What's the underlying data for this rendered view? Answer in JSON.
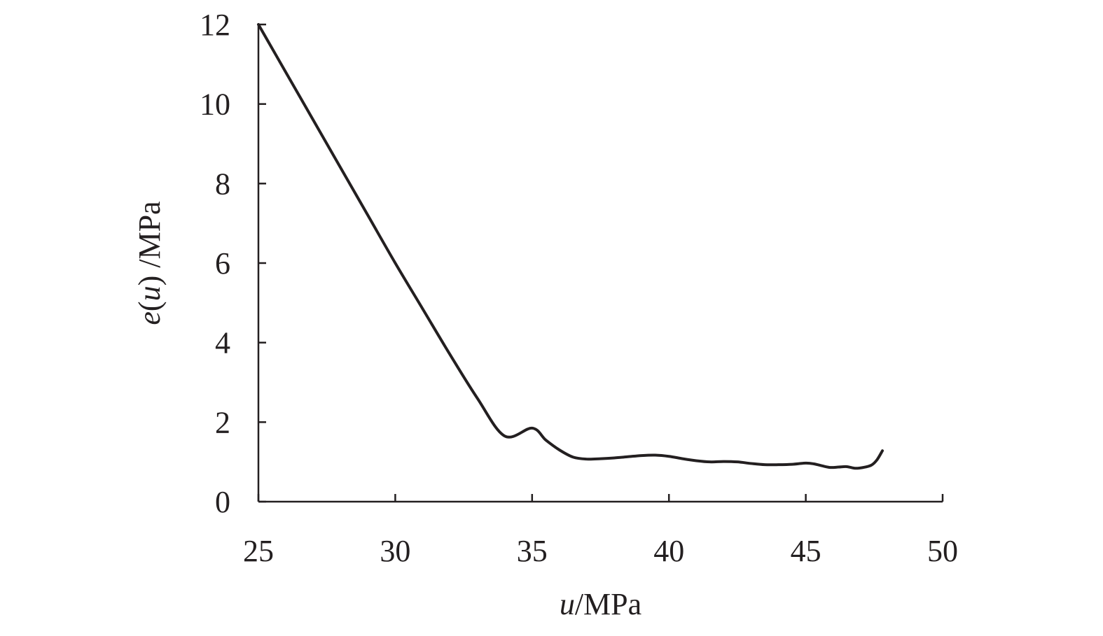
{
  "chart_data": {
    "type": "line",
    "title": "",
    "xlabel": {
      "var": "u",
      "unit": "/MPa"
    },
    "ylabel": {
      "func": "e",
      "paren_open": "(",
      "var": "u",
      "paren_close": ")",
      "unit": " /MPa"
    },
    "xlim": [
      25,
      50
    ],
    "ylim": [
      0,
      12
    ],
    "xticks": [
      "25",
      "30",
      "35",
      "40",
      "45",
      "50"
    ],
    "yticks": [
      "0",
      "2",
      "4",
      "6",
      "8",
      "10",
      "12"
    ],
    "grid": false,
    "legend": "none",
    "line_color": "#231f20",
    "series": [
      {
        "x": [
          25.0,
          26.0,
          27.0,
          28.0,
          29.0,
          30.0,
          31.0,
          32.0,
          33.0,
          34.0,
          35.0,
          35.5,
          36.0,
          36.5,
          37.0,
          37.5,
          38.0,
          38.5,
          39.0,
          39.5,
          40.0,
          40.5,
          41.0,
          41.5,
          42.0,
          42.5,
          43.0,
          43.5,
          44.0,
          44.5,
          45.0,
          45.3,
          45.6,
          45.9,
          46.2,
          46.5,
          46.8,
          47.1,
          47.4,
          47.6,
          47.8
        ],
        "y": [
          12.0,
          10.8,
          9.6,
          8.4,
          7.2,
          6.0,
          4.85,
          3.7,
          2.6,
          1.65,
          1.85,
          1.55,
          1.3,
          1.12,
          1.07,
          1.08,
          1.1,
          1.13,
          1.16,
          1.17,
          1.14,
          1.08,
          1.03,
          1.0,
          1.01,
          1.0,
          0.96,
          0.93,
          0.93,
          0.94,
          0.97,
          0.95,
          0.9,
          0.86,
          0.87,
          0.88,
          0.84,
          0.86,
          0.92,
          1.05,
          1.28
        ]
      }
    ]
  }
}
